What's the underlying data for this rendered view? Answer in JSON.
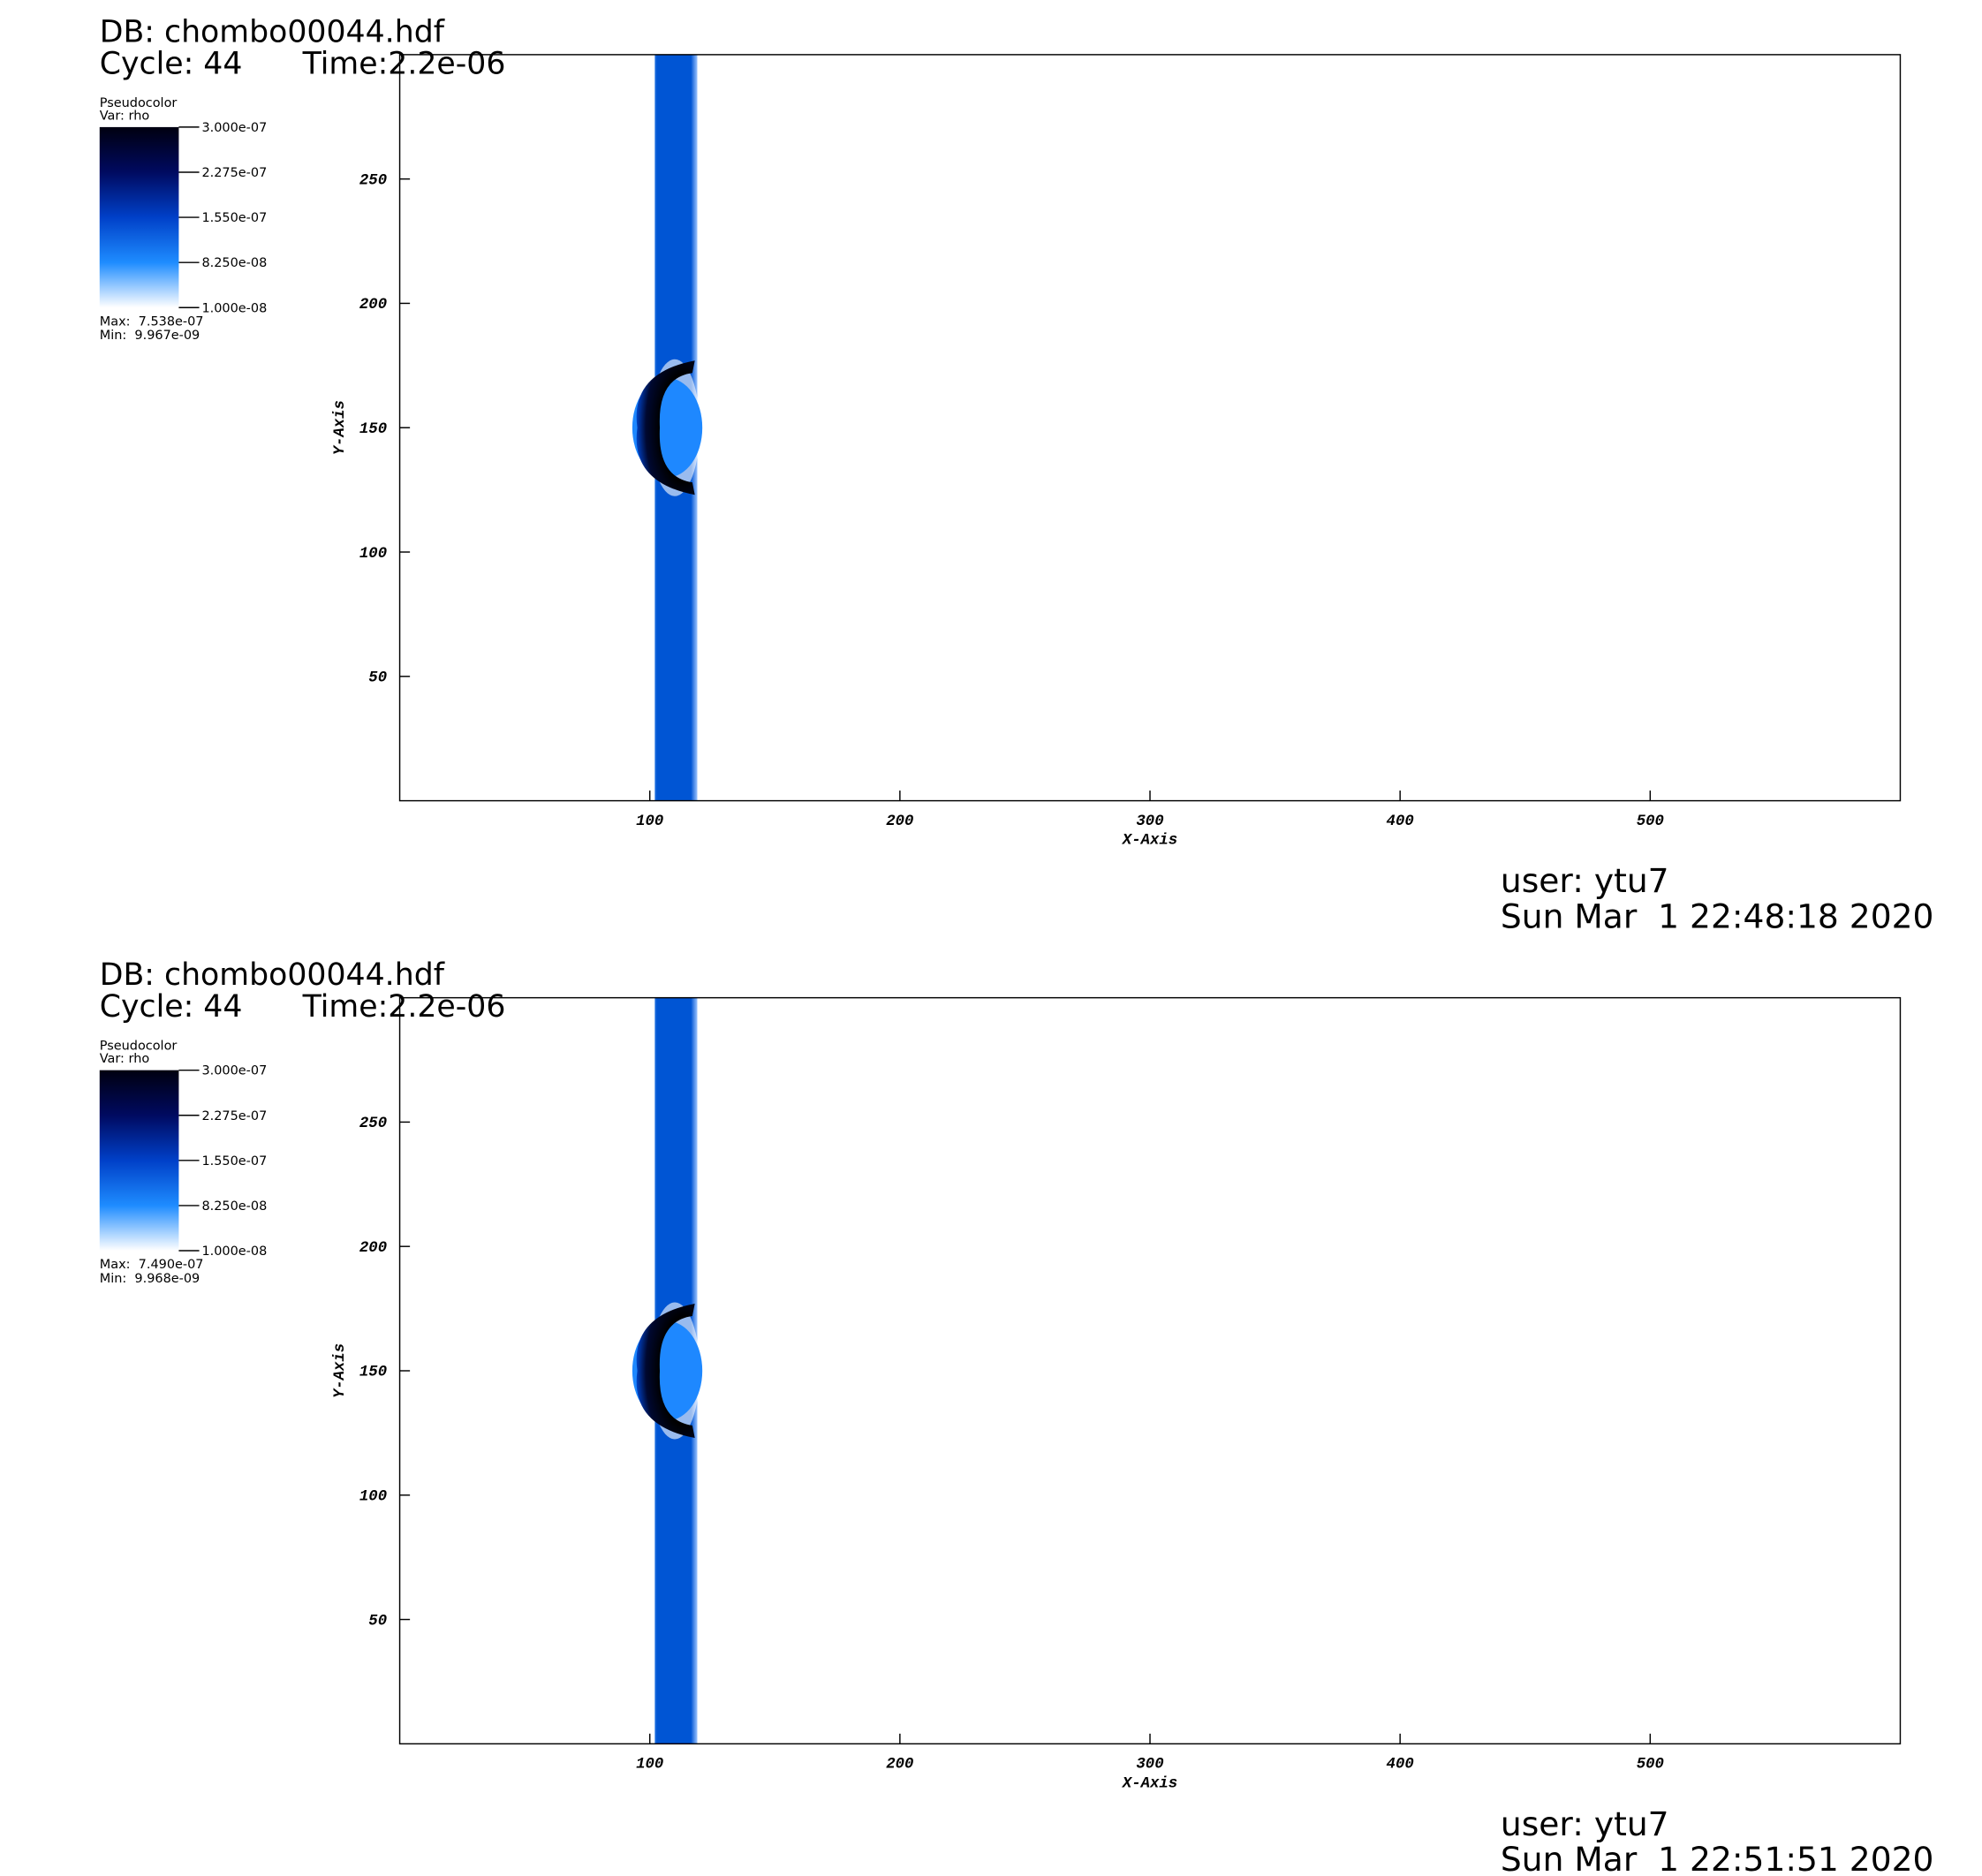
{
  "chart_data": [
    {
      "type": "pseudocolor",
      "db": "DB: chombo00044.hdf",
      "cycle": "Cycle: 44",
      "time": "Time:2.2e-06",
      "legend_title": "Pseudocolor",
      "variable": "Var: rho",
      "colorbar_lim": [
        1e-08,
        3e-07
      ],
      "colorbar_ticks": [
        {
          "value": 3e-07,
          "label": "3.000e-07"
        },
        {
          "value": 2.275e-07,
          "label": "2.275e-07"
        },
        {
          "value": 1.55e-07,
          "label": "1.550e-07"
        },
        {
          "value": 8.25e-08,
          "label": "8.250e-08"
        },
        {
          "value": 1e-08,
          "label": "1.000e-08"
        }
      ],
      "max": "Max:  7.538e-07",
      "min": "Min:  9.967e-09",
      "x_label": "X-Axis",
      "y_label": "Y-Axis",
      "xlim": [
        0,
        600
      ],
      "xticks": [
        100,
        200,
        300,
        400,
        500
      ],
      "ylim": [
        0,
        300
      ],
      "yticks": [
        50,
        100,
        150,
        200,
        250
      ],
      "user": "user: ytu7",
      "date": "Sun Mar  1 22:48:18 2020"
    },
    {
      "type": "pseudocolor",
      "db": "DB: chombo00044.hdf",
      "cycle": "Cycle: 44",
      "time": "Time:2.2e-06",
      "legend_title": "Pseudocolor",
      "variable": "Var: rho",
      "colorbar_lim": [
        1e-08,
        3e-07
      ],
      "colorbar_ticks": [
        {
          "value": 3e-07,
          "label": "3.000e-07"
        },
        {
          "value": 2.275e-07,
          "label": "2.275e-07"
        },
        {
          "value": 1.55e-07,
          "label": "1.550e-07"
        },
        {
          "value": 8.25e-08,
          "label": "8.250e-08"
        },
        {
          "value": 1e-08,
          "label": "1.000e-08"
        }
      ],
      "max": "Max:  7.490e-07",
      "min": "Min:  9.968e-09",
      "x_label": "X-Axis",
      "y_label": "Y-Axis",
      "xlim": [
        0,
        600
      ],
      "xticks": [
        100,
        200,
        300,
        400,
        500
      ],
      "ylim": [
        0,
        300
      ],
      "yticks": [
        50,
        100,
        150,
        200,
        250
      ],
      "user": "user: ytu7",
      "date": "Sun Mar  1 22:51:51 2020"
    }
  ]
}
